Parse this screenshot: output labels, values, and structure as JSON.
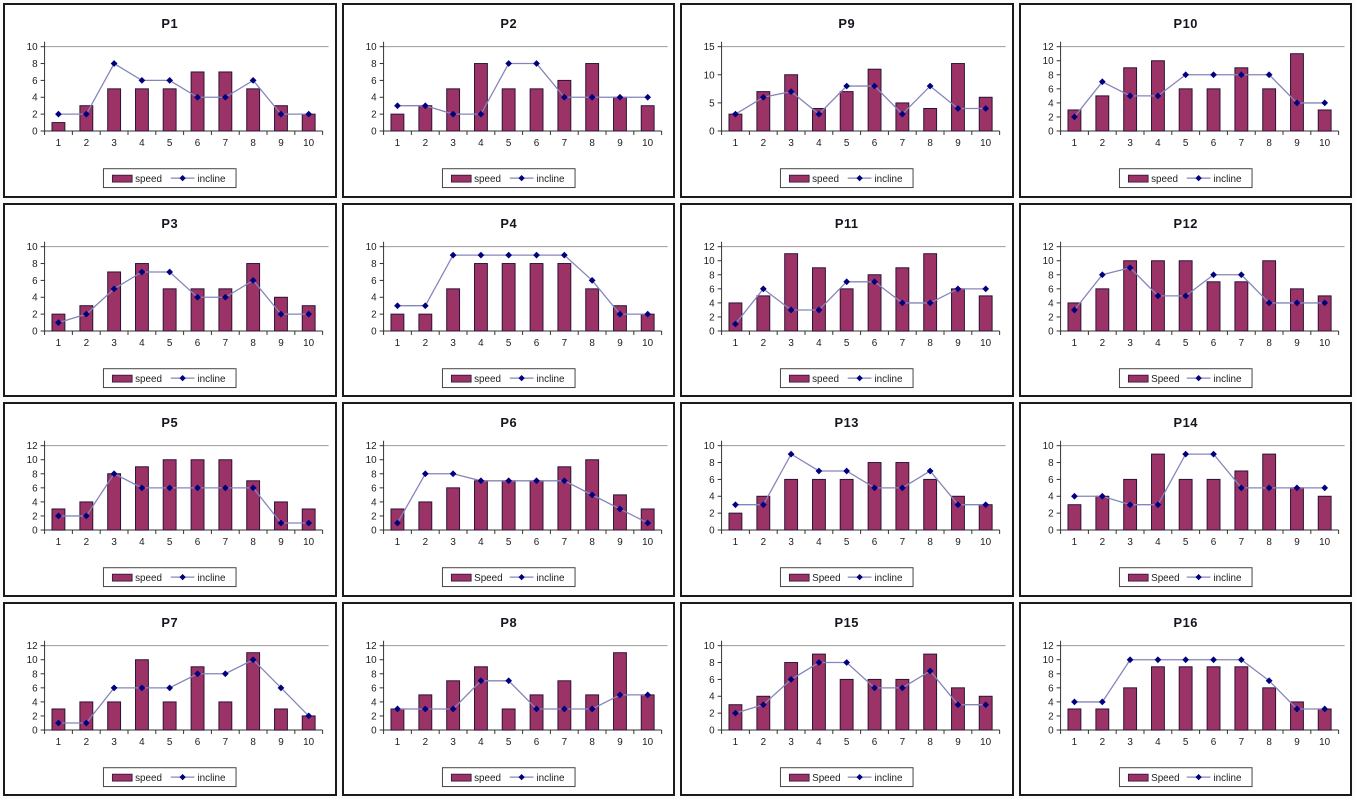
{
  "page": {
    "description": "4x4 grid of Excel-style combo charts, speed bars with incline line, participants P1-P16"
  },
  "colors": {
    "bar_fill": "#9c3366",
    "bar_border": "#2a1238",
    "line": "#8585bb",
    "marker": "#000080",
    "title_text": "#15151f",
    "axis_text": "#1c1c1c",
    "axis_line": "#333333",
    "gridline": "#999999",
    "panel_border": "#1a1a1a",
    "legend_border": "#444444"
  },
  "chart_data": [
    {
      "type": "bar",
      "title": "P1",
      "categories": [
        1,
        2,
        3,
        4,
        5,
        6,
        7,
        8,
        9,
        10
      ],
      "ylim": [
        0,
        10
      ],
      "ytick_step": 2,
      "grid": "top-line-only",
      "legend_position": "bottom",
      "series": [
        {
          "name": "speed",
          "type": "bar",
          "values": [
            1,
            3,
            5,
            5,
            5,
            7,
            7,
            5,
            3,
            2
          ]
        },
        {
          "name": "incline",
          "type": "line",
          "values": [
            2,
            2,
            8,
            6,
            6,
            4,
            4,
            6,
            2,
            2
          ]
        }
      ]
    },
    {
      "type": "bar",
      "title": "P2",
      "categories": [
        1,
        2,
        3,
        4,
        5,
        6,
        7,
        8,
        9,
        10
      ],
      "ylim": [
        0,
        10
      ],
      "ytick_step": 2,
      "grid": "top-line-only",
      "legend_position": "bottom",
      "series": [
        {
          "name": "speed",
          "type": "bar",
          "values": [
            2,
            3,
            5,
            8,
            5,
            5,
            6,
            8,
            4,
            3
          ]
        },
        {
          "name": "incline",
          "type": "line",
          "values": [
            3,
            3,
            2,
            2,
            8,
            8,
            4,
            4,
            4,
            4
          ]
        }
      ]
    },
    {
      "type": "bar",
      "title": "P9",
      "categories": [
        1,
        2,
        3,
        4,
        5,
        6,
        7,
        8,
        9,
        10
      ],
      "ylim": [
        0,
        15
      ],
      "ytick_step": 5,
      "grid": "top-line-only",
      "legend_position": "bottom",
      "series": [
        {
          "name": "speed",
          "type": "bar",
          "values": [
            3,
            7,
            10,
            4,
            7,
            11,
            5,
            4,
            12,
            6
          ]
        },
        {
          "name": "incline",
          "type": "line",
          "values": [
            3,
            6,
            7,
            3,
            8,
            8,
            3,
            8,
            4,
            4
          ]
        }
      ]
    },
    {
      "type": "bar",
      "title": "P10",
      "categories": [
        1,
        2,
        3,
        4,
        5,
        6,
        7,
        8,
        9,
        10
      ],
      "ylim": [
        0,
        12
      ],
      "ytick_step": 2,
      "grid": "top-line-only",
      "legend_position": "bottom",
      "series": [
        {
          "name": "speed",
          "type": "bar",
          "values": [
            3,
            5,
            9,
            10,
            6,
            6,
            9,
            6,
            11,
            3
          ]
        },
        {
          "name": "incline",
          "type": "line",
          "values": [
            2,
            7,
            5,
            5,
            8,
            8,
            8,
            8,
            4,
            4
          ]
        }
      ]
    },
    {
      "type": "bar",
      "title": "P3",
      "categories": [
        1,
        2,
        3,
        4,
        5,
        6,
        7,
        8,
        9,
        10
      ],
      "ylim": [
        0,
        10
      ],
      "ytick_step": 2,
      "grid": "top-line-only",
      "legend_position": "bottom",
      "series": [
        {
          "name": "speed",
          "type": "bar",
          "values": [
            2,
            3,
            7,
            8,
            5,
            5,
            5,
            8,
            4,
            3
          ]
        },
        {
          "name": "incline",
          "type": "line",
          "values": [
            1,
            2,
            5,
            7,
            7,
            4,
            4,
            6,
            2,
            2
          ]
        }
      ]
    },
    {
      "type": "bar",
      "title": "P4",
      "categories": [
        1,
        2,
        3,
        4,
        5,
        6,
        7,
        8,
        9,
        10
      ],
      "ylim": [
        0,
        10
      ],
      "ytick_step": 2,
      "grid": "top-line-only",
      "legend_position": "bottom",
      "series": [
        {
          "name": "speed",
          "type": "bar",
          "values": [
            2,
            2,
            5,
            8,
            8,
            8,
            8,
            5,
            3,
            2
          ]
        },
        {
          "name": "incline",
          "type": "line",
          "values": [
            3,
            3,
            9,
            9,
            9,
            9,
            9,
            6,
            2,
            2
          ]
        }
      ]
    },
    {
      "type": "bar",
      "title": "P11",
      "categories": [
        1,
        2,
        3,
        4,
        5,
        6,
        7,
        8,
        9,
        10
      ],
      "ylim": [
        0,
        12
      ],
      "ytick_step": 2,
      "grid": "top-line-only",
      "legend_position": "bottom",
      "series": [
        {
          "name": "speed",
          "type": "bar",
          "values": [
            4,
            5,
            11,
            9,
            6,
            8,
            9,
            11,
            6,
            5
          ]
        },
        {
          "name": "incline",
          "type": "line",
          "values": [
            1,
            6,
            3,
            3,
            7,
            7,
            4,
            4,
            6,
            6
          ]
        }
      ]
    },
    {
      "type": "bar",
      "title": "P12",
      "categories": [
        1,
        2,
        3,
        4,
        5,
        6,
        7,
        8,
        9,
        10
      ],
      "ylim": [
        0,
        12
      ],
      "ytick_step": 2,
      "grid": "top-line-only",
      "legend_position": "bottom",
      "series": [
        {
          "name": "Speed",
          "type": "bar",
          "values": [
            4,
            6,
            10,
            10,
            10,
            7,
            7,
            10,
            6,
            5
          ]
        },
        {
          "name": "incline",
          "type": "line",
          "values": [
            3,
            8,
            9,
            5,
            5,
            8,
            8,
            4,
            4,
            4
          ]
        }
      ]
    },
    {
      "type": "bar",
      "title": "P5",
      "categories": [
        1,
        2,
        3,
        4,
        5,
        6,
        7,
        8,
        9,
        10
      ],
      "ylim": [
        0,
        12
      ],
      "ytick_step": 2,
      "grid": "top-line-only",
      "legend_position": "bottom",
      "series": [
        {
          "name": "speed",
          "type": "bar",
          "values": [
            3,
            4,
            8,
            9,
            10,
            10,
            10,
            7,
            4,
            3
          ]
        },
        {
          "name": "incline",
          "type": "line",
          "values": [
            2,
            2,
            8,
            6,
            6,
            6,
            6,
            6,
            1,
            1
          ]
        }
      ]
    },
    {
      "type": "bar",
      "title": "P6",
      "categories": [
        1,
        2,
        3,
        4,
        5,
        6,
        7,
        8,
        9,
        10
      ],
      "ylim": [
        0,
        12
      ],
      "ytick_step": 2,
      "grid": "top-line-only",
      "legend_position": "bottom",
      "series": [
        {
          "name": "Speed",
          "type": "bar",
          "values": [
            3,
            4,
            6,
            7,
            7,
            7,
            9,
            10,
            5,
            3
          ]
        },
        {
          "name": "incline",
          "type": "line",
          "values": [
            1,
            8,
            8,
            7,
            7,
            7,
            7,
            5,
            3,
            1
          ]
        }
      ]
    },
    {
      "type": "bar",
      "title": "P13",
      "categories": [
        1,
        2,
        3,
        4,
        5,
        6,
        7,
        8,
        9,
        10
      ],
      "ylim": [
        0,
        10
      ],
      "ytick_step": 2,
      "grid": "top-line-only",
      "legend_position": "bottom",
      "series": [
        {
          "name": "Speed",
          "type": "bar",
          "values": [
            2,
            4,
            6,
            6,
            6,
            8,
            8,
            6,
            4,
            3
          ]
        },
        {
          "name": "incline",
          "type": "line",
          "values": [
            3,
            3,
            9,
            7,
            7,
            5,
            5,
            7,
            3,
            3
          ]
        }
      ]
    },
    {
      "type": "bar",
      "title": "P14",
      "categories": [
        1,
        2,
        3,
        4,
        5,
        6,
        7,
        8,
        9,
        10
      ],
      "ylim": [
        0,
        10
      ],
      "ytick_step": 2,
      "grid": "top-line-only",
      "legend_position": "bottom",
      "series": [
        {
          "name": "Speed",
          "type": "bar",
          "values": [
            3,
            4,
            6,
            9,
            6,
            6,
            7,
            9,
            5,
            4
          ]
        },
        {
          "name": "incline",
          "type": "line",
          "values": [
            4,
            4,
            3,
            3,
            9,
            9,
            5,
            5,
            5,
            5
          ]
        }
      ]
    },
    {
      "type": "bar",
      "title": "P7",
      "categories": [
        1,
        2,
        3,
        4,
        5,
        6,
        7,
        8,
        9,
        10
      ],
      "ylim": [
        0,
        12
      ],
      "ytick_step": 2,
      "grid": "top-line-only",
      "legend_position": "bottom",
      "series": [
        {
          "name": "speed",
          "type": "bar",
          "values": [
            3,
            4,
            4,
            10,
            4,
            9,
            4,
            11,
            3,
            2
          ]
        },
        {
          "name": "incline",
          "type": "line",
          "values": [
            1,
            1,
            6,
            6,
            6,
            8,
            8,
            10,
            6,
            2
          ]
        }
      ]
    },
    {
      "type": "bar",
      "title": "P8",
      "categories": [
        1,
        2,
        3,
        4,
        5,
        6,
        7,
        8,
        9,
        10
      ],
      "ylim": [
        0,
        12
      ],
      "ytick_step": 2,
      "grid": "top-line-only",
      "legend_position": "bottom",
      "series": [
        {
          "name": "speed",
          "type": "bar",
          "values": [
            3,
            5,
            7,
            9,
            3,
            5,
            7,
            5,
            11,
            5
          ]
        },
        {
          "name": "incline",
          "type": "line",
          "values": [
            3,
            3,
            3,
            7,
            7,
            3,
            3,
            3,
            5,
            5
          ]
        }
      ]
    },
    {
      "type": "bar",
      "title": "P15",
      "categories": [
        1,
        2,
        3,
        4,
        5,
        6,
        7,
        8,
        9,
        10
      ],
      "ylim": [
        0,
        10
      ],
      "ytick_step": 2,
      "grid": "top-line-only",
      "legend_position": "bottom",
      "series": [
        {
          "name": "Speed",
          "type": "bar",
          "values": [
            3,
            4,
            8,
            9,
            6,
            6,
            6,
            9,
            5,
            4
          ]
        },
        {
          "name": "incline",
          "type": "line",
          "values": [
            2,
            3,
            6,
            8,
            8,
            5,
            5,
            7,
            3,
            3
          ]
        }
      ]
    },
    {
      "type": "bar",
      "title": "P16",
      "categories": [
        1,
        2,
        3,
        4,
        5,
        6,
        7,
        8,
        9,
        10
      ],
      "ylim": [
        0,
        12
      ],
      "ytick_step": 2,
      "grid": "top-line-only",
      "legend_position": "bottom",
      "series": [
        {
          "name": "Speed",
          "type": "bar",
          "values": [
            3,
            3,
            6,
            9,
            9,
            9,
            9,
            6,
            4,
            3
          ]
        },
        {
          "name": "incline",
          "type": "line",
          "values": [
            4,
            4,
            10,
            10,
            10,
            10,
            10,
            7,
            3,
            3
          ]
        }
      ]
    }
  ]
}
